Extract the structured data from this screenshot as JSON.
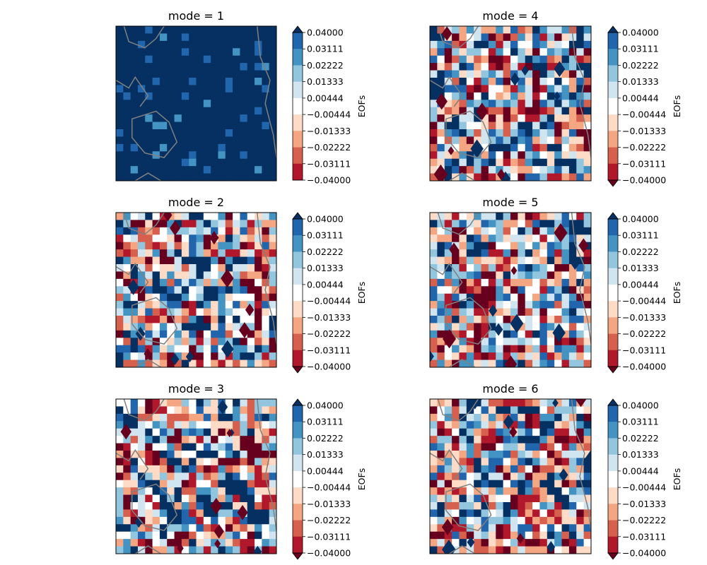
{
  "chart_data": [
    {
      "type": "heatmap",
      "title": "mode = 1",
      "colorbar": {
        "label": "EOFs",
        "ticks": [
          "0.04000",
          "0.03111",
          "0.02222",
          "0.01333",
          "0.00444",
          "−0.00444",
          "−0.01333",
          "−0.02222",
          "−0.03111",
          "−0.04000"
        ],
        "range": [
          -0.04,
          0.04
        ],
        "extend": "max"
      },
      "pattern": "mostly uniform dark blue (above 0.04) with scattered patches of 0.02222–0.03111 blue",
      "coastlines": "gray"
    },
    {
      "type": "heatmap",
      "title": "mode = 2",
      "colorbar": {
        "label": "EOFs",
        "ticks": [
          "0.04000",
          "0.03111",
          "0.02222",
          "0.01333",
          "0.00444",
          "−0.00444",
          "−0.01333",
          "−0.02222",
          "−0.03111",
          "−0.04000"
        ],
        "range": [
          -0.04,
          0.04
        ],
        "extend": "both"
      },
      "pattern": "noisy mixed positive and negative patches",
      "coastlines": "gray"
    },
    {
      "type": "heatmap",
      "title": "mode = 3",
      "colorbar": {
        "label": "EOFs",
        "ticks": [
          "0.04000",
          "0.03111",
          "0.02222",
          "0.01333",
          "0.00444",
          "−0.00444",
          "−0.01333",
          "−0.02222",
          "−0.03111",
          "−0.04000"
        ],
        "range": [
          -0.04,
          0.04
        ],
        "extend": "both"
      },
      "pattern": "noisy mixed positive and negative patches",
      "coastlines": "gray"
    },
    {
      "type": "heatmap",
      "title": "mode = 4",
      "colorbar": {
        "label": "EOFs",
        "ticks": [
          "0.04000",
          "0.03111",
          "0.02222",
          "0.01333",
          "0.00444",
          "−0.00444",
          "−0.01333",
          "−0.02222",
          "−0.03111",
          "−0.04000"
        ],
        "range": [
          -0.04,
          0.04
        ],
        "extend": "both"
      },
      "pattern": "noisy mixed positive and negative patches",
      "coastlines": "gray"
    },
    {
      "type": "heatmap",
      "title": "mode = 5",
      "colorbar": {
        "label": "EOFs",
        "ticks": [
          "0.04000",
          "0.03111",
          "0.02222",
          "0.01333",
          "0.00444",
          "−0.00444",
          "−0.01333",
          "−0.02222",
          "−0.03111",
          "−0.04000"
        ],
        "range": [
          -0.04,
          0.04
        ],
        "extend": "both"
      },
      "pattern": "noisy mixed positive and negative patches",
      "coastlines": "gray"
    },
    {
      "type": "heatmap",
      "title": "mode = 6",
      "colorbar": {
        "label": "EOFs",
        "ticks": [
          "0.04000",
          "0.03111",
          "0.02222",
          "0.01333",
          "0.00444",
          "−0.00444",
          "−0.01333",
          "−0.02222",
          "−0.03111",
          "−0.04000"
        ],
        "range": [
          -0.04,
          0.04
        ],
        "extend": "both"
      },
      "pattern": "noisy mixed positive and negative patches",
      "coastlines": "gray"
    }
  ],
  "colors": {
    "levels_low_to_high": [
      "#67001f",
      "#b2182b",
      "#d6604d",
      "#f4a582",
      "#fddbc7",
      "#ffffff",
      "#d1e5f0",
      "#92c5de",
      "#4393c3",
      "#2166ac",
      "#053061"
    ],
    "coastline": "#808080"
  }
}
